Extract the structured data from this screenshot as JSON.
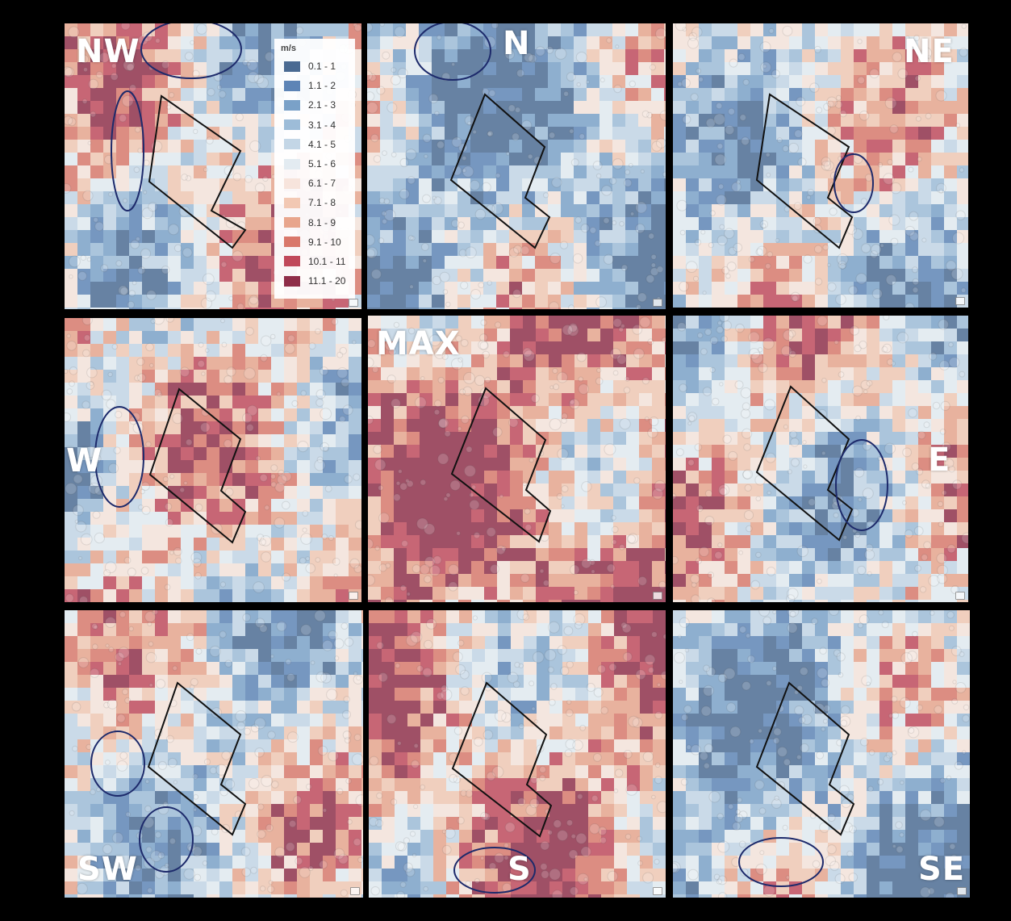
{
  "legend": {
    "title": "m/s",
    "items": [
      {
        "label": "0.1 - 1",
        "color": "#4a6a92"
      },
      {
        "label": "1.1 - 2",
        "color": "#5d84b6"
      },
      {
        "label": "2.1 - 3",
        "color": "#7aa1c8"
      },
      {
        "label": "3.1 - 4",
        "color": "#9dbcd8"
      },
      {
        "label": "4.1 - 5",
        "color": "#c3d6e6"
      },
      {
        "label": "5.1 - 6",
        "color": "#e3ebf1"
      },
      {
        "label": "6.1 - 7",
        "color": "#f7e4dc"
      },
      {
        "label": "7.1 - 8",
        "color": "#f2c8b3"
      },
      {
        "label": "8.1 - 9",
        "color": "#e8a58c"
      },
      {
        "label": "9.1 - 10",
        "color": "#d9776a"
      },
      {
        "label": "10.1 - 11",
        "color": "#c0485a"
      },
      {
        "label": "11.1 - 20",
        "color": "#8f2d48"
      }
    ]
  },
  "panels": [
    {
      "label": "NW",
      "theme": "mixed"
    },
    {
      "label": "N",
      "theme": "blue"
    },
    {
      "label": "NE",
      "theme": "mixed"
    },
    {
      "label": "W",
      "theme": "mixed"
    },
    {
      "label": "MAX",
      "theme": "red"
    },
    {
      "label": "E",
      "theme": "mixed"
    },
    {
      "label": "SW",
      "theme": "mixed"
    },
    {
      "label": "S",
      "theme": "red"
    },
    {
      "label": "SE",
      "theme": "blue"
    }
  ],
  "colors": {
    "outline": "#111111",
    "ellipse": "#1d2a6b",
    "label": "#ffffff"
  }
}
